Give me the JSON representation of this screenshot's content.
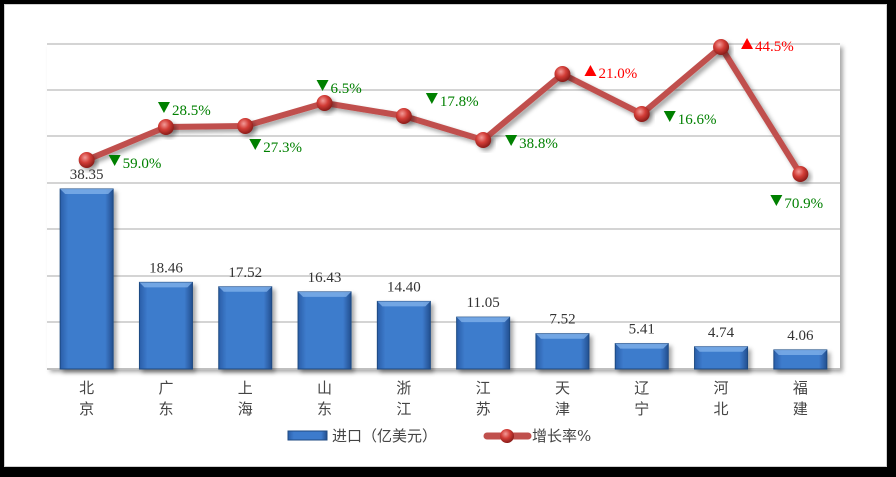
{
  "chart_data": {
    "type": "bar+line",
    "title": "",
    "categories": [
      "北京",
      "广东",
      "上海",
      "山东",
      "浙江",
      "江苏",
      "天津",
      "辽宁",
      "河北",
      "福建"
    ],
    "category_lines": [
      [
        "北",
        "京"
      ],
      [
        "广",
        "东"
      ],
      [
        "上",
        "海"
      ],
      [
        "山",
        "东"
      ],
      [
        "浙",
        "江"
      ],
      [
        "江",
        "苏"
      ],
      [
        "天",
        "津"
      ],
      [
        "辽",
        "宁"
      ],
      [
        "河",
        "北"
      ],
      [
        "福",
        "建"
      ]
    ],
    "series": [
      {
        "name": "进口（亿美元）",
        "type": "bar",
        "values": [
          38.35,
          18.46,
          17.52,
          16.43,
          14.4,
          11.05,
          7.52,
          5.41,
          4.74,
          4.06
        ],
        "labels": [
          "38.35",
          "18.46",
          "17.52",
          "16.43",
          "14.40",
          "11.05",
          "7.52",
          "5.41",
          "4.74",
          "4.06"
        ],
        "color": "#3c78c8"
      },
      {
        "name": "增长率%",
        "type": "line",
        "values": [
          -59.0,
          -28.5,
          -27.3,
          -6.5,
          -17.8,
          -38.8,
          21.0,
          -16.6,
          44.5,
          -70.9
        ],
        "labels": [
          "59.0%",
          "28.5%",
          "27.3%",
          "6.5%",
          "17.8%",
          "38.8%",
          "21.0%",
          "16.6%",
          "44.5%",
          "70.9%"
        ],
        "directions": [
          "down",
          "down",
          "down",
          "down",
          "down",
          "down",
          "up",
          "down",
          "up",
          "down"
        ],
        "color": "#c0504d"
      }
    ],
    "xlabel": "",
    "ylabel": "",
    "grid": true,
    "legend_position": "bottom",
    "colors": {
      "up": "#ff0000",
      "down": "#008000",
      "bar": "#3c78c8",
      "line": "#c0504d"
    }
  },
  "legend": {
    "bar_label": "进口（亿美元）",
    "line_label": "增长率%"
  }
}
